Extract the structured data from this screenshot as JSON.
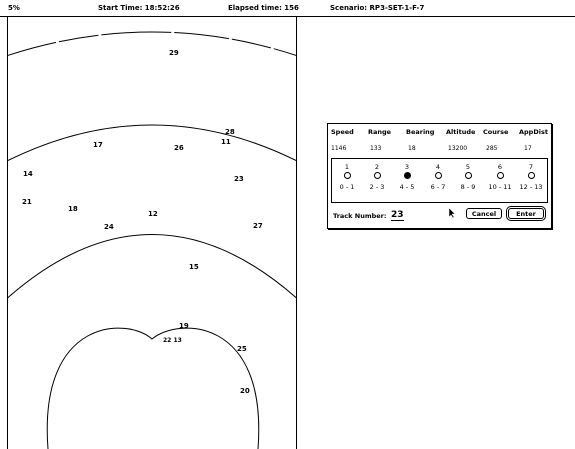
{
  "status": {
    "zoom": "5%",
    "start_time": "Start Time: 18:52:26",
    "elapsed_time": "Elapsed time: 156",
    "scenario": "Scenario: RP3-SET-1-F-7"
  },
  "radar": {
    "tracks": [
      {
        "id": "29"
      },
      {
        "id": "28"
      },
      {
        "id": "17"
      },
      {
        "id": "26"
      },
      {
        "id": "11"
      },
      {
        "id": "14"
      },
      {
        "id": "23"
      },
      {
        "id": "21"
      },
      {
        "id": "18"
      },
      {
        "id": "12"
      },
      {
        "id": "24"
      },
      {
        "id": "27"
      },
      {
        "id": "15"
      },
      {
        "id": "19"
      },
      {
        "id": "22 13"
      },
      {
        "id": "25"
      },
      {
        "id": "20"
      }
    ]
  },
  "dialog": {
    "columns": [
      {
        "label": "Speed",
        "value": "1146"
      },
      {
        "label": "Range",
        "value": "133"
      },
      {
        "label": "Bearing",
        "value": "18"
      },
      {
        "label": "Altitude",
        "value": "13200"
      },
      {
        "label": "Course",
        "value": "285"
      },
      {
        "label": "AppDist",
        "value": "17"
      }
    ],
    "options": [
      {
        "num": "1",
        "range": "0 - 1",
        "selected": false
      },
      {
        "num": "2",
        "range": "2 - 3",
        "selected": false
      },
      {
        "num": "3",
        "range": "4 - 5",
        "selected": true
      },
      {
        "num": "4",
        "range": "6 - 7",
        "selected": false
      },
      {
        "num": "5",
        "range": "8 - 9",
        "selected": false
      },
      {
        "num": "6",
        "range": "10 - 11",
        "selected": false
      },
      {
        "num": "7",
        "range": "12 - 13",
        "selected": false
      }
    ],
    "track_number_label": "Track Number:",
    "track_number_value": "23",
    "cancel_label": "Cancel",
    "enter_label": "Enter"
  }
}
